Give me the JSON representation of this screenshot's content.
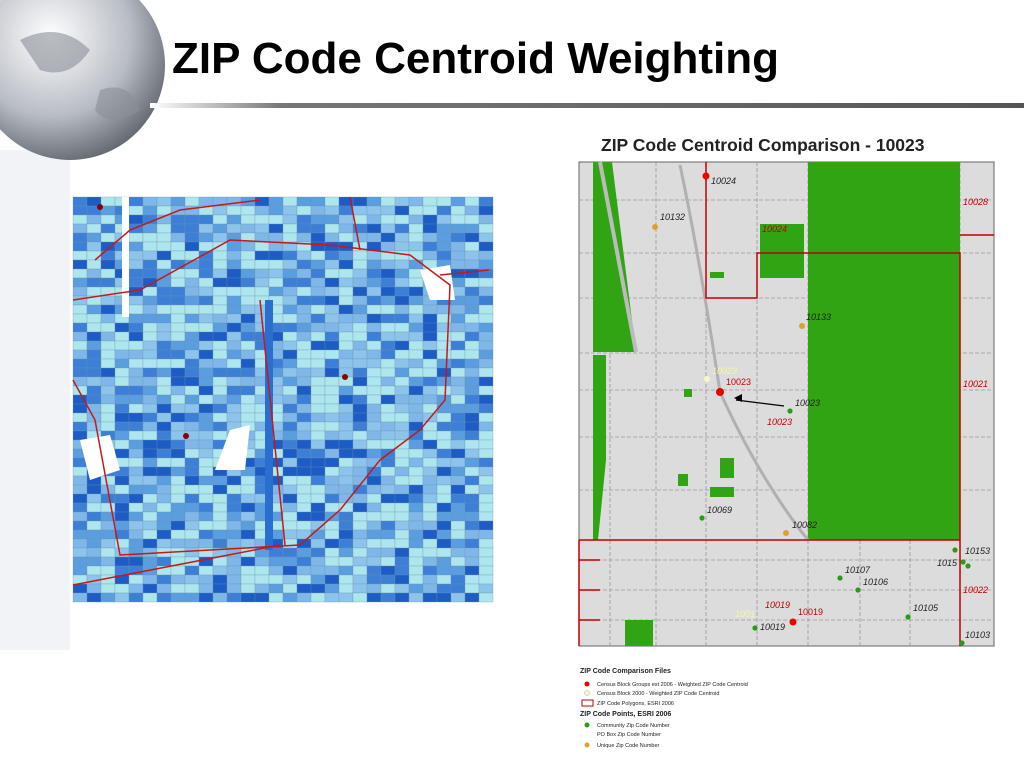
{
  "header": {
    "title": "ZIP Code Centroid Weighting"
  },
  "right_map": {
    "title": "ZIP Code Centroid Comparison - 10023",
    "labels": [
      "10024",
      "10132",
      "10028",
      "10024",
      "10133",
      "10023",
      "10023",
      "10023",
      "10023",
      "10021",
      "10069",
      "10082",
      "10153",
      "1015",
      "10107",
      "10106",
      "10022",
      "10019",
      "10019",
      "1001",
      "10105",
      "10019",
      "10103"
    ]
  },
  "legend": {
    "title": "ZIP Code Comparison Files",
    "items": [
      "Census Block Groups est 2006 - Weighted ZIP Code Centroid",
      "Census Block 2000 - Weighted ZIP Code Centroid",
      "ZIP Code Polygons, ESRI 2006"
    ],
    "subtitle": "ZIP Code Points, ESRI 2006",
    "points": [
      "Community Zip Code Number",
      "PO Box Zip Code Number",
      "Unique Zip Code Number"
    ]
  }
}
